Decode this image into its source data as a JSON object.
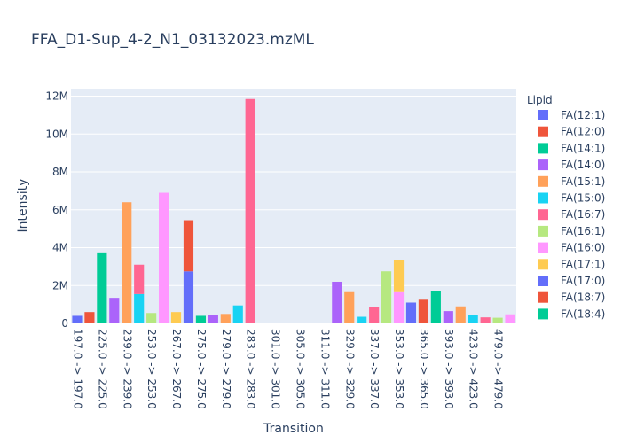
{
  "chart_data": {
    "type": "bar",
    "barmode": "stack",
    "title": "FFA_D1-Sup_4-2_N1_03132023.mzML",
    "xlabel": "Transition",
    "ylabel": "Intensity",
    "ylim": [
      0,
      12400000
    ],
    "y_ticks": [
      {
        "value": 0,
        "label": "0"
      },
      {
        "value": 2000000,
        "label": "2M"
      },
      {
        "value": 4000000,
        "label": "4M"
      },
      {
        "value": 6000000,
        "label": "6M"
      },
      {
        "value": 8000000,
        "label": "8M"
      },
      {
        "value": 10000000,
        "label": "10M"
      },
      {
        "value": 12000000,
        "label": "12M"
      }
    ],
    "categories": [
      "197.0 -> 197.0",
      "",
      "225.0 -> 225.0",
      "",
      "239.0 -> 239.0",
      "",
      "253.0 -> 253.0",
      "",
      "267.0 -> 267.0",
      "",
      "275.0 -> 275.0",
      "",
      "279.0 -> 279.0",
      "",
      "283.0 -> 283.0",
      "",
      "301.0 -> 301.0",
      "",
      "305.0 -> 305.0",
      "",
      "311.0 -> 311.0",
      "",
      "329.0 -> 329.0",
      "",
      "337.0 -> 337.0",
      "",
      "353.0 -> 353.0",
      "",
      "365.0 -> 365.0",
      "",
      "393.0 -> 393.0",
      "",
      "423.0 -> 423.0",
      "",
      "479.0 -> 479.0",
      ""
    ],
    "grid": true,
    "legend_position": "right",
    "legend_title": "Lipid",
    "series": [
      {
        "name": "FA(12:1)",
        "color": "#636efa",
        "points": [
          {
            "i": 0,
            "y": 400000
          }
        ]
      },
      {
        "name": "FA(12:0)",
        "color": "#ef553b",
        "points": [
          {
            "i": 1,
            "y": 600000
          }
        ]
      },
      {
        "name": "FA(14:1)",
        "color": "#00cc96",
        "points": [
          {
            "i": 2,
            "y": 3750000
          }
        ]
      },
      {
        "name": "FA(14:0)",
        "color": "#ab63fa",
        "points": [
          {
            "i": 3,
            "y": 1350000
          }
        ]
      },
      {
        "name": "FA(15:1)",
        "color": "#ffa15a",
        "points": [
          {
            "i": 4,
            "y": 6400000
          }
        ]
      },
      {
        "name": "FA(15:0)",
        "color": "#19d3f3",
        "points": [
          {
            "i": 5,
            "y": 1550000
          }
        ]
      },
      {
        "name": "FA(16:7)",
        "color": "#ff6692",
        "points": [
          {
            "i": 5,
            "y": 1550000
          }
        ]
      },
      {
        "name": "FA(16:1)",
        "color": "#b6e880",
        "points": [
          {
            "i": 6,
            "y": 550000
          }
        ]
      },
      {
        "name": "FA(16:0)",
        "color": "#ff97ff",
        "points": [
          {
            "i": 7,
            "y": 6900000
          }
        ]
      },
      {
        "name": "FA(17:1)",
        "color": "#fecb52",
        "points": [
          {
            "i": 8,
            "y": 600000
          }
        ]
      },
      {
        "name": "FA(17:0)",
        "color": "#636efa",
        "points": [
          {
            "i": 9,
            "y": 2750000
          }
        ]
      },
      {
        "name": "FA(18:7)",
        "color": "#ef553b",
        "points": [
          {
            "i": 9,
            "y": 2700000
          }
        ]
      },
      {
        "name": "FA(18:4)",
        "color": "#00cc96",
        "points": [
          {
            "i": 10,
            "y": 400000
          }
        ]
      },
      {
        "name": "",
        "color": "#ab63fa",
        "points": [
          {
            "i": 11,
            "y": 450000
          }
        ]
      },
      {
        "name": "",
        "color": "#ffa15a",
        "points": [
          {
            "i": 12,
            "y": 500000
          }
        ]
      },
      {
        "name": "",
        "color": "#19d3f3",
        "points": [
          {
            "i": 13,
            "y": 950000
          }
        ]
      },
      {
        "name": "",
        "color": "#ff6692",
        "points": [
          {
            "i": 14,
            "y": 11850000
          }
        ]
      },
      {
        "name": "",
        "color": "#b6e880",
        "points": [
          {
            "i": 15,
            "y": 20000
          }
        ]
      },
      {
        "name": "",
        "color": "#ff97ff",
        "points": [
          {
            "i": 16,
            "y": 20000
          }
        ]
      },
      {
        "name": "",
        "color": "#fecb52",
        "points": [
          {
            "i": 17,
            "y": 20000
          }
        ]
      },
      {
        "name": "",
        "color": "#636efa",
        "points": [
          {
            "i": 18,
            "y": 20000
          }
        ]
      },
      {
        "name": "",
        "color": "#ef553b",
        "points": [
          {
            "i": 19,
            "y": 20000
          }
        ]
      },
      {
        "name": "",
        "color": "#00cc96",
        "points": [
          {
            "i": 20,
            "y": 20000
          }
        ]
      },
      {
        "name": "",
        "color": "#ab63fa",
        "points": [
          {
            "i": 21,
            "y": 2200000
          }
        ]
      },
      {
        "name": "",
        "color": "#ffa15a",
        "points": [
          {
            "i": 22,
            "y": 1650000
          }
        ]
      },
      {
        "name": "",
        "color": "#19d3f3",
        "points": [
          {
            "i": 23,
            "y": 350000
          }
        ]
      },
      {
        "name": "",
        "color": "#ff6692",
        "points": [
          {
            "i": 24,
            "y": 850000
          }
        ]
      },
      {
        "name": "",
        "color": "#b6e880",
        "points": [
          {
            "i": 25,
            "y": 2750000
          }
        ]
      },
      {
        "name": "",
        "color": "#ff97ff",
        "points": [
          {
            "i": 26,
            "y": 1650000
          }
        ]
      },
      {
        "name": "",
        "color": "#fecb52",
        "points": [
          {
            "i": 26,
            "y": 1700000
          }
        ]
      },
      {
        "name": "",
        "color": "#636efa",
        "points": [
          {
            "i": 27,
            "y": 1100000
          }
        ]
      },
      {
        "name": "",
        "color": "#ef553b",
        "points": [
          {
            "i": 28,
            "y": 1250000
          }
        ]
      },
      {
        "name": "",
        "color": "#00cc96",
        "points": [
          {
            "i": 29,
            "y": 1700000
          }
        ]
      },
      {
        "name": "",
        "color": "#ab63fa",
        "points": [
          {
            "i": 30,
            "y": 650000
          }
        ]
      },
      {
        "name": "",
        "color": "#ffa15a",
        "points": [
          {
            "i": 31,
            "y": 900000
          }
        ]
      },
      {
        "name": "",
        "color": "#19d3f3",
        "points": [
          {
            "i": 32,
            "y": 450000
          }
        ]
      },
      {
        "name": "",
        "color": "#ff6692",
        "points": [
          {
            "i": 33,
            "y": 320000
          }
        ]
      },
      {
        "name": "",
        "color": "#b6e880",
        "points": [
          {
            "i": 34,
            "y": 300000
          }
        ]
      },
      {
        "name": "",
        "color": "#ff97ff",
        "points": [
          {
            "i": 35,
            "y": 480000
          }
        ]
      }
    ]
  }
}
